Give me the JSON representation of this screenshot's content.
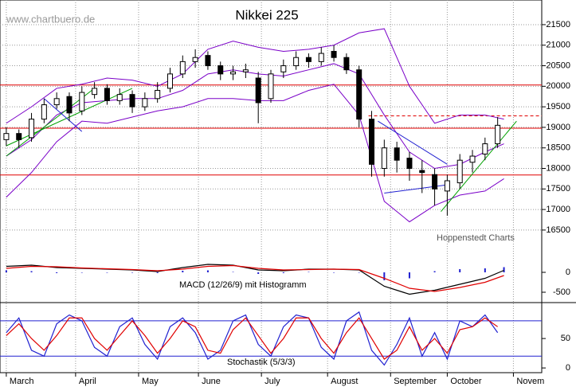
{
  "chart_data": {
    "type": "candlestick",
    "title": "Nikkei 225",
    "watermark": "www.chartbuero.de",
    "source": "Hoppenstedt Charts",
    "grid": true,
    "xlim": [
      -2,
      170
    ],
    "xticks": [
      {
        "value": 0,
        "label": "March"
      },
      {
        "value": 22,
        "label": "April"
      },
      {
        "value": 42,
        "label": "May"
      },
      {
        "value": 61,
        "label": "June"
      },
      {
        "value": 81,
        "label": "July"
      },
      {
        "value": 102,
        "label": "August"
      },
      {
        "value": 122,
        "label": "September"
      },
      {
        "value": 140,
        "label": "October"
      },
      {
        "value": 161,
        "label": "Novem"
      }
    ],
    "ylim": [
      15800,
      22100
    ],
    "yticks": [
      16500,
      17000,
      17500,
      18000,
      18500,
      19000,
      19500,
      20000,
      20500,
      21000,
      21500
    ],
    "x": [
      0,
      4,
      8,
      12,
      16,
      20,
      24,
      28,
      32,
      36,
      40,
      44,
      48,
      52,
      56,
      60,
      64,
      68,
      72,
      76,
      80,
      84,
      88,
      92,
      96,
      100,
      104,
      108,
      112,
      116,
      120,
      124,
      128,
      132,
      136,
      140,
      144,
      148,
      152,
      156
    ],
    "open": [
      18700,
      18850,
      18750,
      19200,
      19550,
      19750,
      19400,
      19800,
      19950,
      19650,
      19800,
      19500,
      19700,
      19950,
      20300,
      20600,
      20750,
      20500,
      20300,
      20350,
      20200,
      19700,
      20350,
      20500,
      20700,
      20600,
      20850,
      20700,
      20400,
      19200,
      18000,
      18500,
      18250,
      17950,
      17850,
      17450,
      17650,
      18150,
      18350,
      18600
    ],
    "high": [
      19000,
      18950,
      19350,
      19700,
      19850,
      19850,
      20000,
      20100,
      20050,
      19950,
      19900,
      19850,
      20100,
      20450,
      20750,
      20900,
      20850,
      20600,
      20500,
      20550,
      20350,
      20400,
      20650,
      20850,
      20800,
      20950,
      21000,
      20800,
      20500,
      19400,
      18700,
      18650,
      18400,
      18200,
      18000,
      17850,
      18350,
      18450,
      18750,
      19250
    ],
    "low": [
      18550,
      18500,
      18650,
      19100,
      19450,
      19150,
      19300,
      19700,
      19550,
      19550,
      19350,
      19400,
      19600,
      19850,
      20200,
      20450,
      20400,
      20150,
      20150,
      20200,
      19100,
      19600,
      20200,
      20400,
      20450,
      20500,
      20600,
      20300,
      19000,
      17800,
      17800,
      17900,
      17700,
      17400,
      17100,
      16850,
      17500,
      17900,
      18200,
      18500
    ],
    "close": [
      18850,
      18700,
      19200,
      19550,
      19700,
      19350,
      19850,
      19950,
      19650,
      19800,
      19500,
      19700,
      19900,
      20300,
      20600,
      20700,
      20500,
      20300,
      20350,
      20400,
      19600,
      20300,
      20500,
      20700,
      20600,
      20800,
      20700,
      20400,
      19200,
      18100,
      18500,
      18200,
      18000,
      17900,
      17500,
      17700,
      18200,
      18300,
      18600,
      19050
    ],
    "bollinger": {
      "color": "#7a00c8",
      "x": [
        0,
        8,
        16,
        24,
        32,
        40,
        48,
        56,
        64,
        72,
        80,
        88,
        96,
        104,
        112,
        120,
        128,
        136,
        144,
        152,
        158
      ],
      "upper": [
        19100,
        19500,
        19950,
        20050,
        20200,
        20150,
        20000,
        20300,
        20900,
        21100,
        20950,
        20850,
        20900,
        21000,
        21300,
        21400,
        20000,
        19100,
        19300,
        19300,
        19200
      ],
      "middle": [
        18300,
        18700,
        19300,
        19600,
        19650,
        19700,
        19700,
        19900,
        20300,
        20400,
        20300,
        20250,
        20400,
        20550,
        20300,
        19300,
        18400,
        18000,
        18100,
        18400,
        18600
      ],
      "lower": [
        17300,
        17900,
        18650,
        19150,
        19100,
        19250,
        19400,
        19500,
        19700,
        19700,
        19650,
        19650,
        19900,
        20050,
        19300,
        17200,
        16700,
        17100,
        17350,
        17450,
        17750
      ]
    },
    "levels": {
      "color": "#e00000",
      "solid": [
        20030,
        18980,
        17840
      ],
      "dashed": [
        19280
      ]
    },
    "trendlines": [
      {
        "color": "#00a000",
        "points": [
          [
            0,
            18300
          ],
          [
            28,
            19950
          ]
        ]
      },
      {
        "color": "#00a000",
        "points": [
          [
            0,
            18550
          ],
          [
            40,
            19950
          ]
        ]
      },
      {
        "color": "#00a000",
        "points": [
          [
            138,
            16950
          ],
          [
            162,
            19150
          ]
        ]
      },
      {
        "color": "#2020d0",
        "points": [
          [
            12,
            19700
          ],
          [
            24,
            18900
          ]
        ]
      },
      {
        "color": "#2020d0",
        "points": [
          [
            118,
            19150
          ],
          [
            140,
            18100
          ]
        ]
      },
      {
        "color": "#2020d0",
        "points": [
          [
            120,
            17400
          ],
          [
            140,
            17600
          ]
        ]
      }
    ],
    "macd": {
      "label": "MACD (12/26/9) mit Histogramm",
      "ylim": [
        -760,
        340
      ],
      "yticks": [
        -500,
        0
      ],
      "x": [
        0,
        8,
        16,
        24,
        32,
        40,
        48,
        56,
        64,
        72,
        80,
        88,
        96,
        104,
        112,
        120,
        128,
        136,
        144,
        152,
        158
      ],
      "macd": [
        150,
        180,
        120,
        100,
        80,
        60,
        20,
        120,
        200,
        180,
        60,
        40,
        80,
        80,
        60,
        -350,
        -550,
        -450,
        -300,
        -150,
        50
      ],
      "signal": [
        100,
        150,
        140,
        110,
        90,
        70,
        40,
        80,
        150,
        170,
        100,
        60,
        70,
        80,
        70,
        -150,
        -400,
        -480,
        -380,
        -250,
        -80
      ],
      "histogram": [
        50,
        30,
        -20,
        -10,
        -10,
        -10,
        -20,
        40,
        50,
        10,
        -40,
        -20,
        10,
        0,
        -10,
        -200,
        -150,
        30,
        80,
        100,
        130
      ]
    },
    "stochastic": {
      "label": "Stochastik (5/3/3)",
      "ylim": [
        -8,
        111
      ],
      "yticks": [
        0,
        50
      ],
      "levels": [
        80,
        20
      ],
      "x": [
        0,
        4,
        8,
        12,
        16,
        20,
        24,
        28,
        32,
        36,
        40,
        44,
        48,
        52,
        56,
        60,
        64,
        68,
        72,
        76,
        80,
        84,
        88,
        92,
        96,
        100,
        104,
        108,
        112,
        116,
        120,
        124,
        128,
        132,
        136,
        140,
        144,
        148,
        152,
        156
      ],
      "k": [
        60,
        85,
        30,
        20,
        75,
        90,
        80,
        35,
        20,
        70,
        85,
        40,
        15,
        70,
        85,
        60,
        15,
        30,
        80,
        90,
        40,
        20,
        70,
        90,
        85,
        35,
        15,
        80,
        95,
        30,
        5,
        40,
        85,
        20,
        60,
        15,
        80,
        70,
        90,
        60
      ],
      "d": [
        55,
        75,
        50,
        30,
        55,
        85,
        85,
        50,
        30,
        55,
        80,
        55,
        25,
        50,
        80,
        70,
        30,
        25,
        65,
        85,
        55,
        25,
        50,
        85,
        85,
        50,
        25,
        60,
        85,
        50,
        15,
        30,
        70,
        30,
        50,
        25,
        65,
        70,
        85,
        70
      ]
    }
  }
}
